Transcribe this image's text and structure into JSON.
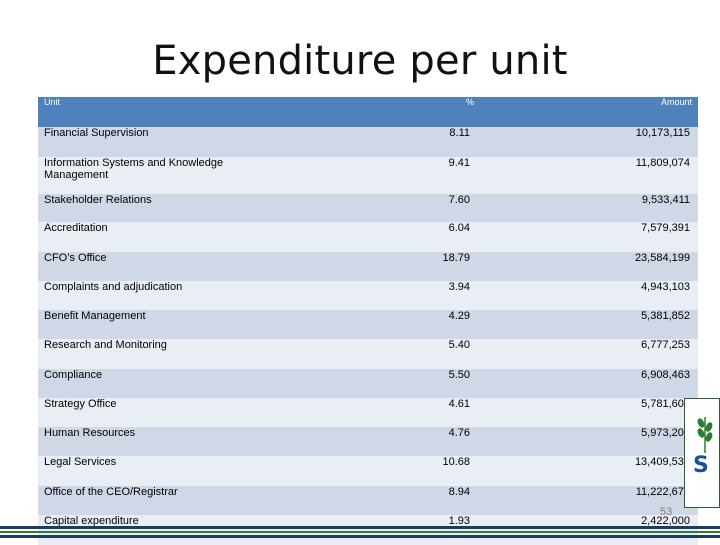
{
  "slide": {
    "title": "Expenditure per unit",
    "page_number": "53"
  },
  "table": {
    "headers": {
      "unit": "Unit",
      "percent": "%",
      "amount": "Amount"
    },
    "rows": [
      {
        "unit": "Financial Supervision",
        "percent": "8.11",
        "amount": "10,173,115"
      },
      {
        "unit": "Information Systems and Knowledge Management",
        "percent": "9.41",
        "amount": "11,809,074"
      },
      {
        "unit": "Stakeholder Relations",
        "percent": "7.60",
        "amount": "9,533,411"
      },
      {
        "unit": "Accreditation",
        "percent": "6.04",
        "amount": "7,579,391"
      },
      {
        "unit": "CFO’s Office",
        "percent": "18.79",
        "amount": "23,584,199"
      },
      {
        "unit": "Complaints and adjudication",
        "percent": "3.94",
        "amount": "4,943,103"
      },
      {
        "unit": "Benefit Management",
        "percent": "4.29",
        "amount": "5,381,852"
      },
      {
        "unit": "Research and Monitoring",
        "percent": "5.40",
        "amount": "6,777,253"
      },
      {
        "unit": "Compliance",
        "percent": "5.50",
        "amount": "6,908,463"
      },
      {
        "unit": "Strategy Office",
        "percent": "4.61",
        "amount": "5,781,600"
      },
      {
        "unit": "Human Resources",
        "percent": "4.76",
        "amount": "5,973,208"
      },
      {
        "unit": "Legal Services",
        "percent": "10.68",
        "amount": "13,409,539"
      },
      {
        "unit": "Office of the CEO/Registrar",
        "percent": "8.94",
        "amount": "11,222,678"
      },
      {
        "unit": "Capital expenditure",
        "percent": "1.93",
        "amount": "2,422,000"
      }
    ]
  },
  "colors": {
    "header_fill": "#4f81bd",
    "row_fill_odd": "#d0d8e8",
    "row_fill_even": "#e9edf4",
    "footer_bar": "#1f3b63",
    "logo_green": "#2e7d32",
    "logo_blue": "#1f4e9a"
  },
  "icons": {
    "logo": "green-wheat-logo-icon"
  }
}
